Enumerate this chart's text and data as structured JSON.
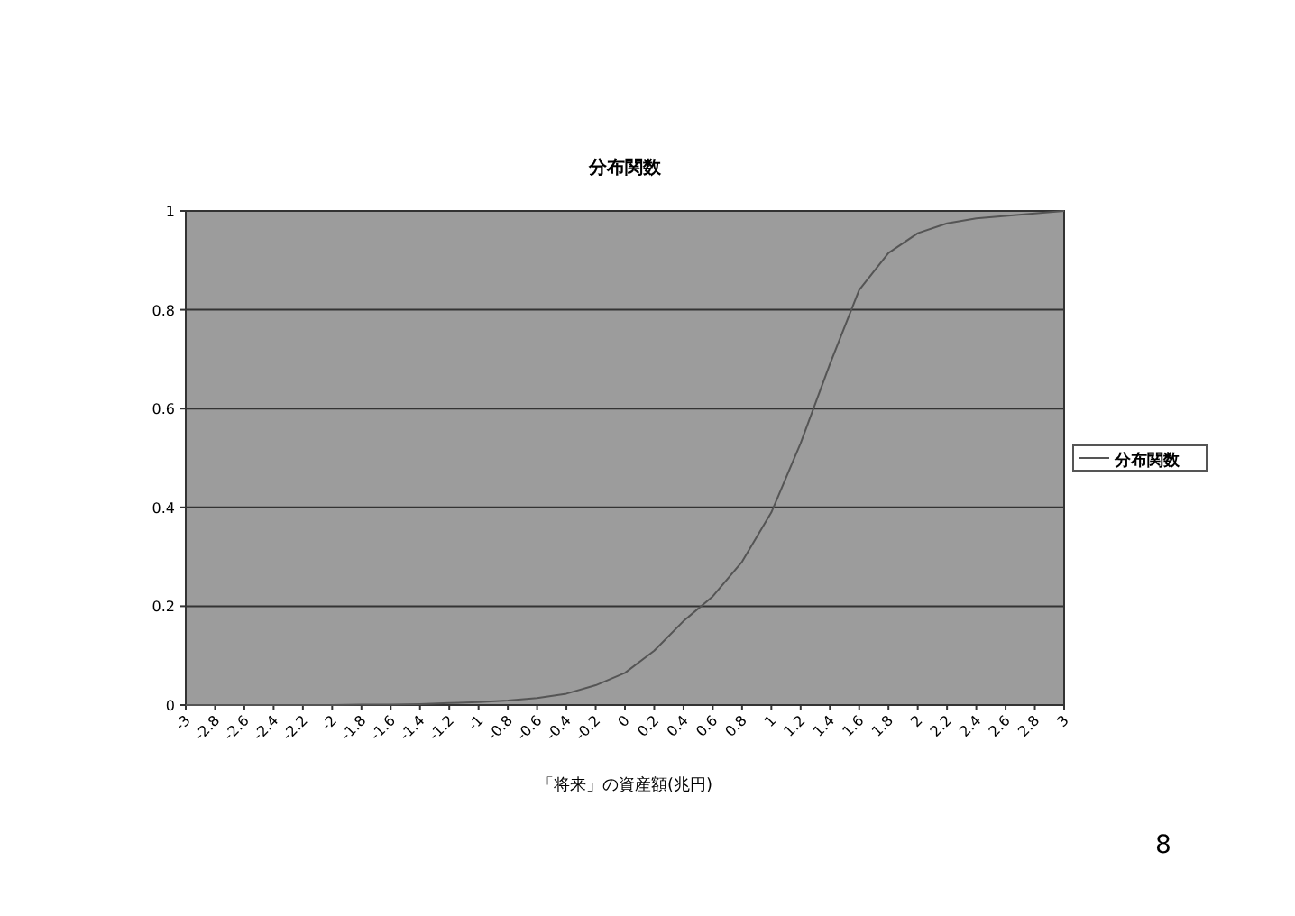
{
  "chart_data": {
    "type": "line",
    "title": "分布関数",
    "xlabel": "「将来」の資産額(兆円)",
    "categories": [
      "-3",
      "-2.8",
      "-2.6",
      "-2.4",
      "-2.2",
      "-2",
      "-1.8",
      "-1.6",
      "-1.4",
      "-1.2",
      "-1",
      "-0.8",
      "-0.6",
      "-0.4",
      "-0.2",
      "0",
      "0.2",
      "0.4",
      "0.6",
      "0.8",
      "1",
      "1.2",
      "1.4",
      "1.6",
      "1.8",
      "2",
      "2.2",
      "2.4",
      "2.6",
      "2.8",
      "3"
    ],
    "series": [
      {
        "name": "分布関数",
        "color": "#555555",
        "values": [
          0,
          0,
          0,
          0,
          0,
          0,
          0.001,
          0.001,
          0.002,
          0.004,
          0.006,
          0.009,
          0.014,
          0.023,
          0.04,
          0.065,
          0.11,
          0.17,
          0.22,
          0.29,
          0.39,
          0.53,
          0.69,
          0.84,
          0.915,
          0.955,
          0.975,
          0.985,
          0.99,
          0.995,
          1
        ]
      }
    ],
    "ylim": [
      0,
      1
    ],
    "yticks": [
      0,
      0.2,
      0.4,
      0.6,
      0.8,
      1
    ],
    "grid": "y",
    "legend": "right",
    "marker": "none",
    "line_style": "solid",
    "annotations": [
      "8"
    ]
  }
}
